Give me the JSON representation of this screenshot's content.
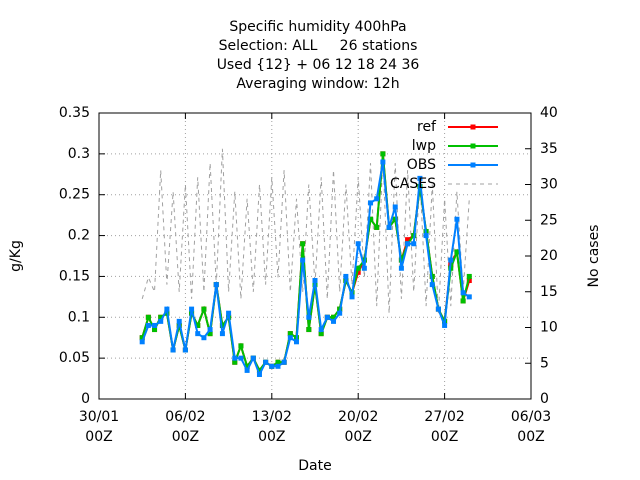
{
  "chart_data": {
    "type": "line",
    "title": [
      "Specific humidity 400hPa",
      "Selection: ALL     26 stations",
      "Used {12} + 06 12 18 24 36",
      "Averaging window: 12h"
    ],
    "x_label": "Date",
    "y_label": "g/Kg",
    "y2_label": "No cases",
    "x": [
      "02/02 12Z",
      "03/02 00Z",
      "03/02 12Z",
      "04/02 00Z",
      "04/02 12Z",
      "05/02 00Z",
      "05/02 12Z",
      "06/02 00Z",
      "06/02 12Z",
      "07/02 00Z",
      "07/02 12Z",
      "08/02 00Z",
      "08/02 12Z",
      "09/02 00Z",
      "09/02 12Z",
      "10/02 00Z",
      "10/02 12Z",
      "11/02 00Z",
      "11/02 12Z",
      "12/02 00Z",
      "12/02 12Z",
      "13/02 00Z",
      "13/02 12Z",
      "14/02 00Z",
      "14/02 12Z",
      "15/02 00Z",
      "15/02 12Z",
      "16/02 00Z",
      "16/02 12Z",
      "17/02 00Z",
      "17/02 12Z",
      "18/02 00Z",
      "18/02 12Z",
      "19/02 00Z",
      "19/02 12Z",
      "20/02 00Z",
      "20/02 12Z",
      "21/02 00Z",
      "21/02 12Z",
      "22/02 00Z",
      "22/02 12Z",
      "23/02 00Z",
      "23/02 12Z",
      "24/02 00Z",
      "24/02 12Z",
      "25/02 00Z",
      "25/02 12Z",
      "26/02 00Z",
      "26/02 12Z",
      "27/02 00Z",
      "27/02 12Z",
      "28/02 00Z",
      "28/02 12Z",
      "01/03 00Z"
    ],
    "series": [
      {
        "name": "ref",
        "color": "#ff0000",
        "values": [
          0.075,
          0.1,
          0.085,
          0.1,
          0.105,
          0.06,
          0.09,
          0.06,
          0.105,
          0.09,
          0.11,
          0.08,
          0.14,
          0.09,
          0.1,
          0.045,
          0.065,
          0.04,
          0.05,
          0.035,
          0.045,
          0.04,
          0.045,
          0.045,
          0.08,
          0.075,
          0.19,
          0.085,
          0.14,
          0.08,
          0.1,
          0.1,
          0.11,
          0.145,
          0.13,
          0.155,
          0.17,
          0.22,
          0.21,
          0.3,
          0.21,
          0.22,
          0.17,
          0.195,
          0.2,
          0.26,
          0.205,
          0.15,
          0.11,
          0.095,
          0.165,
          0.18,
          0.12,
          0.145
        ]
      },
      {
        "name": "lwp",
        "color": "#00c000",
        "values": [
          0.075,
          0.1,
          0.085,
          0.1,
          0.105,
          0.06,
          0.09,
          0.06,
          0.105,
          0.09,
          0.11,
          0.08,
          0.14,
          0.09,
          0.1,
          0.045,
          0.065,
          0.04,
          0.05,
          0.035,
          0.045,
          0.04,
          0.045,
          0.045,
          0.08,
          0.075,
          0.19,
          0.085,
          0.14,
          0.08,
          0.1,
          0.1,
          0.11,
          0.145,
          0.13,
          0.16,
          0.17,
          0.22,
          0.21,
          0.3,
          0.21,
          0.22,
          0.17,
          0.19,
          0.2,
          0.26,
          0.205,
          0.15,
          0.11,
          0.095,
          0.16,
          0.18,
          0.12,
          0.15
        ]
      },
      {
        "name": "OBS",
        "color": "#0080ff",
        "values": [
          0.07,
          0.09,
          0.09,
          0.095,
          0.11,
          0.06,
          0.095,
          0.06,
          0.11,
          0.08,
          0.075,
          0.085,
          0.14,
          0.08,
          0.105,
          0.05,
          0.05,
          0.035,
          0.05,
          0.03,
          0.045,
          0.04,
          0.04,
          0.045,
          0.075,
          0.07,
          0.17,
          0.1,
          0.145,
          0.085,
          0.1,
          0.095,
          0.105,
          0.15,
          0.125,
          0.19,
          0.16,
          0.24,
          0.245,
          0.29,
          0.21,
          0.235,
          0.16,
          0.19,
          0.19,
          0.27,
          0.2,
          0.14,
          0.11,
          0.09,
          0.17,
          0.22,
          0.13,
          0.125
        ]
      },
      {
        "name": "CASES",
        "color": "#a0a0a0",
        "axis": "y2",
        "dashed": true,
        "values": [
          14,
          17,
          15,
          32,
          16,
          29,
          15,
          30,
          14,
          31,
          15,
          33,
          16,
          35,
          15,
          29,
          14,
          28,
          15,
          30,
          16,
          31,
          17,
          32,
          15,
          28,
          15,
          30,
          16,
          31,
          14,
          32,
          15,
          30,
          16,
          31,
          17,
          33,
          13,
          34,
          12,
          33,
          14,
          32,
          15,
          31,
          13,
          30,
          12,
          28,
          13,
          29,
          15,
          28
        ]
      }
    ],
    "xlim": [
      "30/01 00Z",
      "06/03 00Z"
    ],
    "xticks": [
      {
        "value": "30/01 00Z",
        "label": [
          "30/01",
          "00Z"
        ]
      },
      {
        "value": "06/02 00Z",
        "label": [
          "06/02",
          "00Z"
        ]
      },
      {
        "value": "13/02 00Z",
        "label": [
          "13/02",
          "00Z"
        ]
      },
      {
        "value": "20/02 00Z",
        "label": [
          "20/02",
          "00Z"
        ]
      },
      {
        "value": "27/02 00Z",
        "label": [
          "27/02",
          "00Z"
        ]
      },
      {
        "value": "06/03 00Z",
        "label": [
          "06/03",
          "00Z"
        ]
      }
    ],
    "ylim": [
      0,
      0.35
    ],
    "yticks": [
      0,
      0.05,
      0.1,
      0.15,
      0.2,
      0.25,
      0.3,
      0.35
    ],
    "y2lim": [
      0,
      40
    ],
    "y2ticks": [
      0,
      5,
      10,
      15,
      20,
      25,
      30,
      35,
      40
    ],
    "grid": true,
    "legend": "top-right"
  }
}
